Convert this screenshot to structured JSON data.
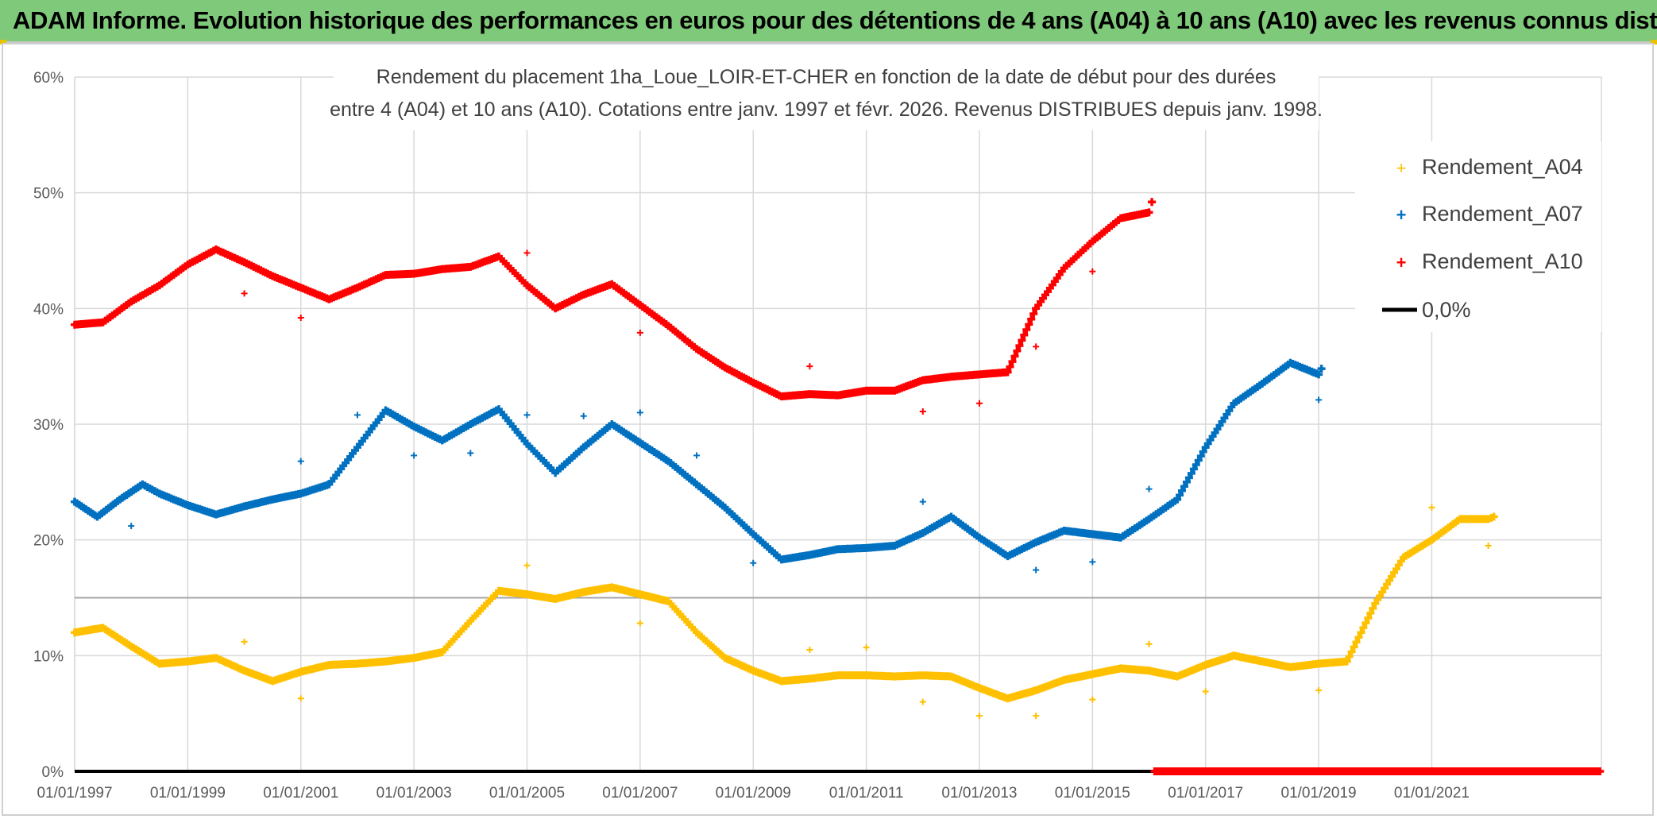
{
  "banner_title": "ADAM Informe. Evolution historique des performances en euros pour des détentions de 4 ans (A04) à 10 ans (A10) avec les revenus connus distribués",
  "colors": {
    "A04": "#ffc000",
    "A07": "#0070c0",
    "A10": "#ff0000",
    "zero": "#000000",
    "banner": "#7fc97a"
  },
  "chart_data": {
    "type": "scatter",
    "title_lines": [
      "Rendement du placement 1ha_Loue_LOIR-ET-CHER en fonction de la date de début pour des durées",
      "entre 4 (A04) et 10 ans (A10). Cotations entre janv. 1997 et févr. 2026. Revenus DISTRIBUES depuis janv. 1998."
    ],
    "xlabel": "",
    "ylabel": "",
    "x_domain": [
      1997.0,
      2024.0
    ],
    "ylim": [
      0,
      60
    ],
    "y_ticks": [
      "0%",
      "10%",
      "20%",
      "30%",
      "40%",
      "50%",
      "60%"
    ],
    "x_tick_labels": [
      "01/01/1997",
      "01/01/1999",
      "01/01/2001",
      "01/01/2003",
      "01/01/2005",
      "01/01/2007",
      "01/01/2009",
      "01/01/2011",
      "01/01/2013",
      "01/01/2015",
      "01/01/2017",
      "01/01/2019",
      "01/01/2021"
    ],
    "x_tick_years": [
      1997,
      1999,
      2001,
      2003,
      2005,
      2007,
      2009,
      2011,
      2013,
      2015,
      2017,
      2019,
      2021
    ],
    "reference_line_y": 15,
    "legend": [
      "Rendement_A04",
      "Rendement_A07",
      "Rendement_A10",
      "0,0%"
    ],
    "series": [
      {
        "name": "Rendement_A04",
        "x": [
          1997.0,
          1997.5,
          1998.0,
          1998.5,
          1999.0,
          1999.5,
          2000.0,
          2000.5,
          2001.0,
          2001.5,
          2002.0,
          2002.5,
          2003.0,
          2003.5,
          2004.0,
          2004.5,
          2005.0,
          2005.5,
          2006.0,
          2006.5,
          2007.0,
          2007.5,
          2008.0,
          2008.5,
          2009.0,
          2009.5,
          2010.0,
          2010.5,
          2011.0,
          2011.5,
          2012.0,
          2012.5,
          2013.0,
          2013.5,
          2014.0,
          2014.5,
          2015.0,
          2015.5,
          2016.0,
          2016.5,
          2017.0,
          2017.5,
          2018.0,
          2018.5,
          2019.0,
          2019.5,
          2020.0,
          2020.5,
          2021.0,
          2021.5,
          2022.0,
          2022.1
        ],
        "values": [
          12.0,
          12.4,
          10.8,
          9.3,
          9.5,
          9.8,
          8.7,
          7.8,
          8.6,
          9.2,
          9.3,
          9.5,
          9.8,
          10.3,
          13.0,
          15.6,
          15.3,
          14.9,
          15.5,
          15.9,
          15.3,
          14.7,
          12.0,
          9.8,
          8.7,
          7.8,
          8.0,
          8.3,
          8.3,
          8.2,
          8.3,
          8.2,
          7.2,
          6.3,
          7.0,
          7.9,
          8.4,
          8.9,
          8.7,
          8.2,
          9.2,
          10.0,
          9.5,
          9.0,
          9.3,
          9.5,
          14.5,
          18.5,
          20.0,
          21.8,
          21.8,
          22.0
        ]
      },
      {
        "name": "Rendement_A07",
        "x": [
          1997.0,
          1997.4,
          1997.8,
          1998.2,
          1998.5,
          1999.0,
          1999.5,
          2000.0,
          2000.5,
          2001.0,
          2001.5,
          2002.0,
          2002.5,
          2003.0,
          2003.5,
          2004.0,
          2004.5,
          2005.0,
          2005.5,
          2006.0,
          2006.5,
          2007.0,
          2007.5,
          2008.0,
          2008.5,
          2009.0,
          2009.5,
          2010.0,
          2010.5,
          2011.0,
          2011.5,
          2012.0,
          2012.5,
          2013.0,
          2013.5,
          2014.0,
          2014.5,
          2015.0,
          2015.5,
          2016.0,
          2016.5,
          2017.0,
          2017.5,
          2018.0,
          2018.5,
          2019.0,
          2019.05
        ],
        "values": [
          23.3,
          22.0,
          23.5,
          24.8,
          24.0,
          23.0,
          22.2,
          22.9,
          23.5,
          24.0,
          24.8,
          28.0,
          31.2,
          29.8,
          28.6,
          30.0,
          31.3,
          28.3,
          25.8,
          28.0,
          30.0,
          28.4,
          26.8,
          24.8,
          22.8,
          20.5,
          18.3,
          18.7,
          19.2,
          19.3,
          19.5,
          20.6,
          22.0,
          20.2,
          18.6,
          19.8,
          20.8,
          20.5,
          20.2,
          21.8,
          23.5,
          28.0,
          31.8,
          33.5,
          35.3,
          34.3,
          34.8
        ]
      },
      {
        "name": "Rendement_A10",
        "x": [
          1997.0,
          1997.5,
          1998.0,
          1998.5,
          1999.0,
          1999.5,
          2000.0,
          2000.5,
          2001.0,
          2001.5,
          2002.0,
          2002.5,
          2003.0,
          2003.5,
          2004.0,
          2004.5,
          2005.0,
          2005.5,
          2006.0,
          2006.5,
          2007.0,
          2007.5,
          2008.0,
          2008.5,
          2009.0,
          2009.5,
          2010.0,
          2010.5,
          2011.0,
          2011.5,
          2012.0,
          2012.5,
          2013.0,
          2013.5,
          2014.0,
          2014.5,
          2015.0,
          2015.5,
          2016.0,
          2016.05
        ],
        "values": [
          38.6,
          38.8,
          40.6,
          42.0,
          43.8,
          45.1,
          44.0,
          42.8,
          41.8,
          40.8,
          41.8,
          42.9,
          43.0,
          43.4,
          43.6,
          44.5,
          42.0,
          40.0,
          41.2,
          42.1,
          40.3,
          38.5,
          36.5,
          34.9,
          33.6,
          32.4,
          32.6,
          32.5,
          32.9,
          32.9,
          33.8,
          34.1,
          34.3,
          34.5,
          40.0,
          43.5,
          45.8,
          47.8,
          48.3,
          49.2
        ]
      },
      {
        "name": "0,0%",
        "x": [
          1997.0,
          2024.0
        ],
        "values": [
          0,
          0
        ]
      }
    ],
    "outliers": [
      {
        "series": "Rendement_A04",
        "points": [
          [
            2000.0,
            11.2
          ],
          [
            2001.0,
            6.3
          ],
          [
            2005.0,
            17.8
          ],
          [
            2007.0,
            12.8
          ],
          [
            2010.0,
            10.5
          ],
          [
            2011.0,
            10.7
          ],
          [
            2012.0,
            6.0
          ],
          [
            2013.0,
            4.8
          ],
          [
            2014.0,
            4.8
          ],
          [
            2015.0,
            6.2
          ],
          [
            2016.0,
            11.0
          ],
          [
            2017.0,
            6.9
          ],
          [
            2019.0,
            7.0
          ],
          [
            2021.0,
            22.8
          ],
          [
            2022.0,
            19.5
          ]
        ]
      },
      {
        "series": "Rendement_A07",
        "points": [
          [
            1998.0,
            21.2
          ],
          [
            2001.0,
            26.8
          ],
          [
            2002.0,
            30.8
          ],
          [
            2003.0,
            27.3
          ],
          [
            2004.0,
            27.5
          ],
          [
            2005.0,
            30.8
          ],
          [
            2006.0,
            30.7
          ],
          [
            2007.0,
            31.0
          ],
          [
            2008.0,
            27.3
          ],
          [
            2009.0,
            18.0
          ],
          [
            2012.0,
            23.3
          ],
          [
            2014.0,
            17.4
          ],
          [
            2015.0,
            18.1
          ],
          [
            2016.0,
            24.4
          ],
          [
            2019.0,
            32.1
          ]
        ]
      },
      {
        "series": "Rendement_A10",
        "points": [
          [
            2000.0,
            41.3
          ],
          [
            2001.0,
            39.2
          ],
          [
            2005.0,
            44.8
          ],
          [
            2007.0,
            37.9
          ],
          [
            2010.0,
            35.0
          ],
          [
            2012.0,
            31.1
          ],
          [
            2013.0,
            31.8
          ],
          [
            2014.0,
            36.7
          ],
          [
            2015.0,
            43.2
          ]
        ]
      }
    ],
    "zero_markers": {
      "series": "Rendement_A10",
      "x_start": 2016.1,
      "x_end": 2024.0,
      "value": 0
    }
  }
}
